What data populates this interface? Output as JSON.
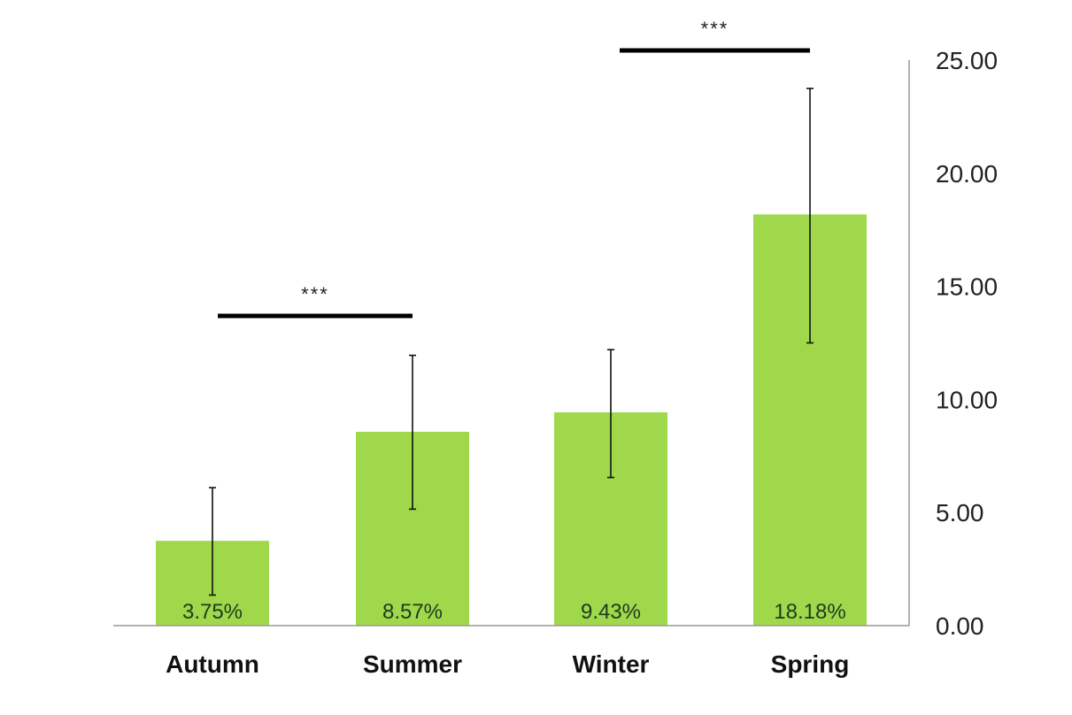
{
  "chart_data": {
    "type": "bar",
    "title": "",
    "xlabel": "",
    "ylabel": "",
    "categories": [
      "Autumn",
      "Summer",
      "Winter",
      "Spring"
    ],
    "values": [
      3.75,
      8.57,
      9.43,
      18.18
    ],
    "value_labels": [
      "3.75%",
      "8.57%",
      "9.43%",
      "18.18%"
    ],
    "error_bars": [
      {
        "low": 1.35,
        "high": 6.1
      },
      {
        "low": 5.15,
        "high": 11.95
      },
      {
        "low": 6.55,
        "high": 12.2
      },
      {
        "low": 12.5,
        "high": 23.75
      }
    ],
    "ylim": [
      0,
      25
    ],
    "yticks": [
      0,
      5,
      10,
      15,
      20,
      25
    ],
    "ytick_labels": [
      "0.00",
      "5.00",
      "10.00",
      "15.00",
      "20.00",
      "25.00"
    ],
    "y_axis_side": "right",
    "grid": false,
    "legend": "none",
    "bar_color": "#9fd84a",
    "significance": [
      {
        "between": [
          "Autumn",
          "Summer"
        ],
        "label": "***"
      },
      {
        "between": [
          "Winter",
          "Spring"
        ],
        "label": "***"
      }
    ]
  }
}
